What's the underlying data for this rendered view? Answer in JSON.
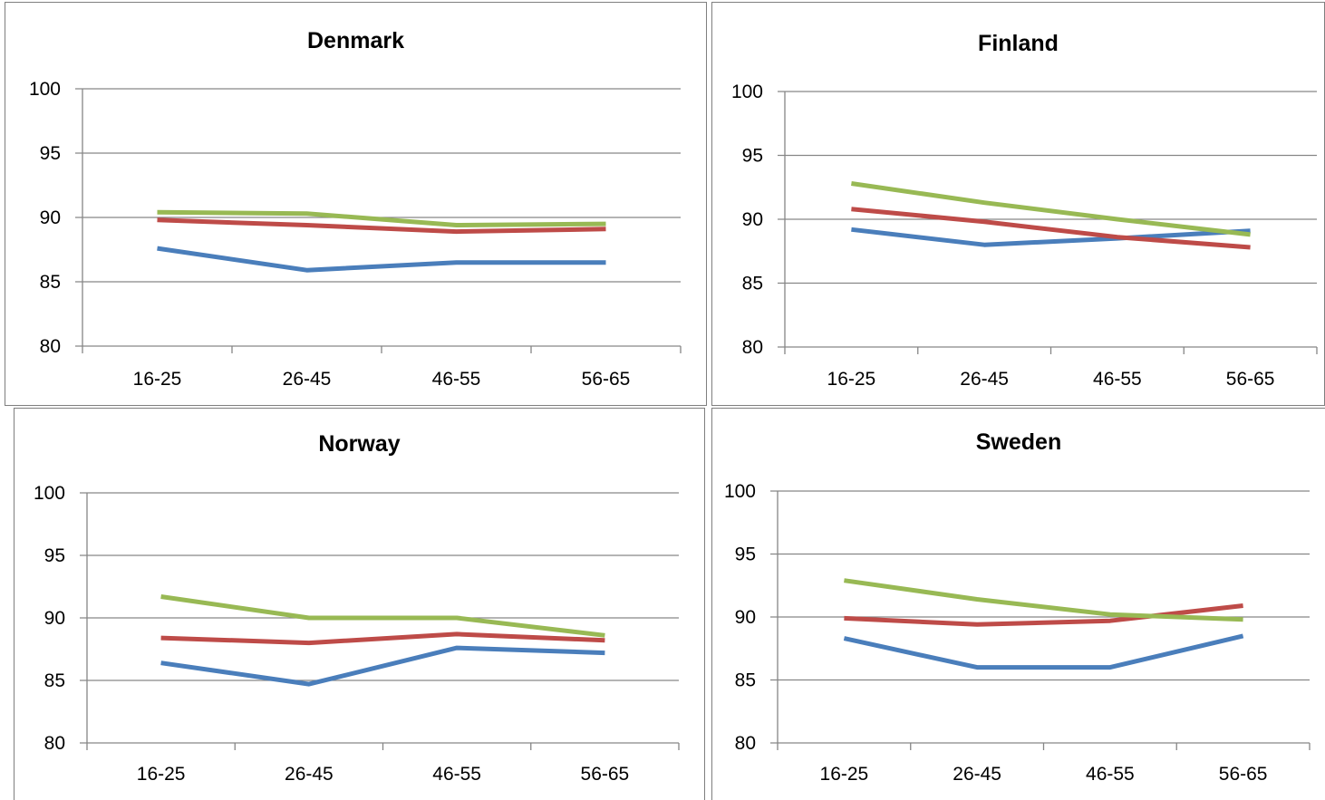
{
  "colors": {
    "series_1": "#4a7ebb",
    "series_2": "#be4b48",
    "series_3": "#98b954",
    "grid": "#868686",
    "axis": "#868686"
  },
  "chart_data": [
    {
      "type": "line",
      "title": "Denmark",
      "categories": [
        "16-25",
        "26-45",
        "46-55",
        "56-65"
      ],
      "yticks": [
        80,
        85,
        90,
        95,
        100
      ],
      "ylim": [
        80,
        100
      ],
      "grid": true,
      "legend": "none",
      "series": [
        {
          "values": [
            87.6,
            85.9,
            86.5,
            86.5
          ],
          "color": "#4a7ebb"
        },
        {
          "values": [
            89.8,
            89.4,
            88.9,
            89.1
          ],
          "color": "#be4b48"
        },
        {
          "values": [
            90.4,
            90.3,
            89.4,
            89.5
          ],
          "color": "#98b954"
        }
      ]
    },
    {
      "type": "line",
      "title": "Finland",
      "categories": [
        "16-25",
        "26-45",
        "46-55",
        "56-65"
      ],
      "yticks": [
        80,
        85,
        90,
        95,
        100
      ],
      "ylim": [
        80,
        100
      ],
      "grid": true,
      "legend": "none",
      "series": [
        {
          "values": [
            89.2,
            88.0,
            88.5,
            89.1
          ],
          "color": "#4a7ebb"
        },
        {
          "values": [
            90.8,
            89.8,
            88.6,
            87.8
          ],
          "color": "#be4b48"
        },
        {
          "values": [
            92.8,
            91.3,
            90.0,
            88.8
          ],
          "color": "#98b954"
        }
      ]
    },
    {
      "type": "line",
      "title": "Norway",
      "categories": [
        "16-25",
        "26-45",
        "46-55",
        "56-65"
      ],
      "yticks": [
        80,
        85,
        90,
        95,
        100
      ],
      "ylim": [
        80,
        100
      ],
      "grid": true,
      "legend": "none",
      "series": [
        {
          "values": [
            86.4,
            84.7,
            87.6,
            87.2
          ],
          "color": "#4a7ebb"
        },
        {
          "values": [
            88.4,
            88.0,
            88.7,
            88.2
          ],
          "color": "#be4b48"
        },
        {
          "values": [
            91.7,
            90.0,
            90.0,
            88.6
          ],
          "color": "#98b954"
        }
      ]
    },
    {
      "type": "line",
      "title": "Sweden",
      "categories": [
        "16-25",
        "26-45",
        "46-55",
        "56-65"
      ],
      "yticks": [
        80,
        85,
        90,
        95,
        100
      ],
      "ylim": [
        80,
        100
      ],
      "grid": true,
      "legend": "none",
      "series": [
        {
          "values": [
            88.3,
            86.0,
            86.0,
            88.5
          ],
          "color": "#4a7ebb"
        },
        {
          "values": [
            89.9,
            89.4,
            89.7,
            90.9
          ],
          "color": "#be4b48"
        },
        {
          "values": [
            92.9,
            91.4,
            90.2,
            89.8
          ],
          "color": "#98b954"
        }
      ]
    }
  ]
}
